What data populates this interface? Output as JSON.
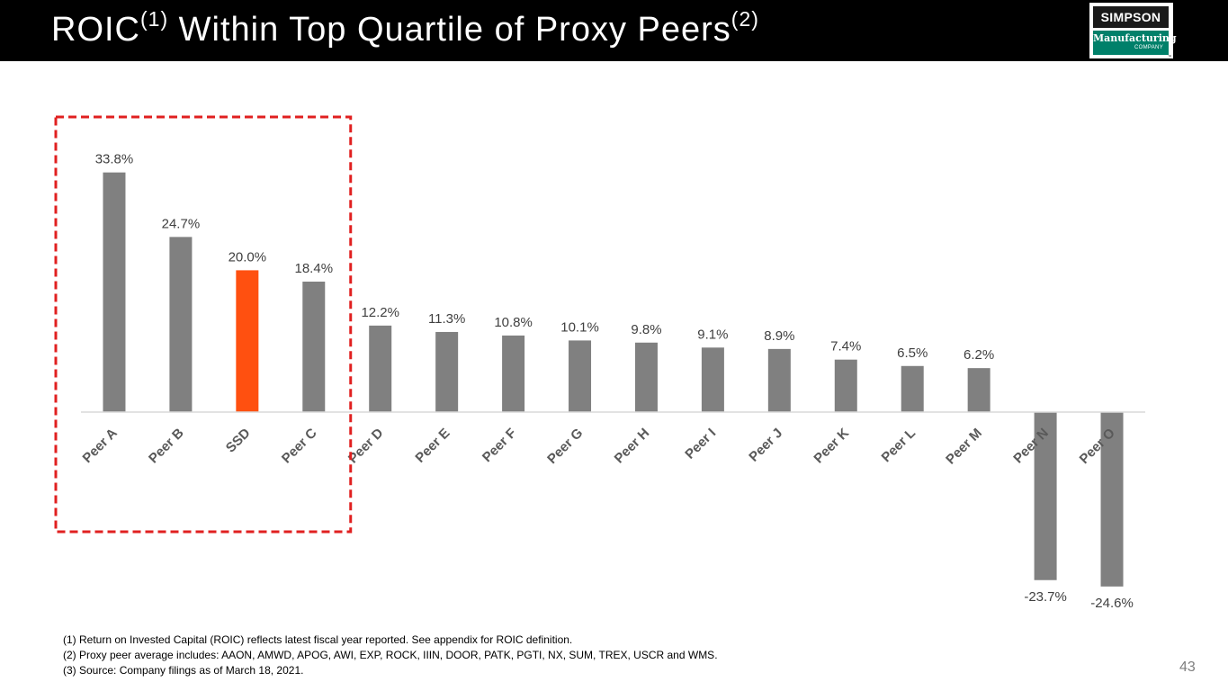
{
  "header": {
    "title_main": "ROIC",
    "title_sup1": "(1)",
    "title_rest": " Within Top Quartile of Proxy Peers",
    "title_sup2": "(2)"
  },
  "logo": {
    "line1": "SIMPSON",
    "line2": "Manufacturing",
    "line3": "COMPANY",
    "tm": "™"
  },
  "colors": {
    "bar_default": "#808080",
    "bar_highlight": "#ff5010",
    "highlight_box": "#e02020",
    "axis": "#d9d9d9"
  },
  "chart_data": {
    "type": "bar",
    "title": "",
    "xlabel": "",
    "ylabel": "",
    "categories": [
      "Peer A",
      "Peer B",
      "SSD",
      "Peer C",
      "Peer D",
      "Peer E",
      "Peer F",
      "Peer G",
      "Peer H",
      "Peer I",
      "Peer J",
      "Peer K",
      "Peer L",
      "Peer M",
      "Peer N",
      "Peer O"
    ],
    "values": [
      33.8,
      24.7,
      20.0,
      18.4,
      12.2,
      11.3,
      10.8,
      10.1,
      9.8,
      9.1,
      8.9,
      7.4,
      6.5,
      6.2,
      -23.7,
      -24.6
    ],
    "value_labels": [
      "33.8%",
      "24.7%",
      "20.0%",
      "18.4%",
      "12.2%",
      "11.3%",
      "10.8%",
      "10.1%",
      "9.8%",
      "9.1%",
      "8.9%",
      "7.4%",
      "6.5%",
      "6.2%",
      "-23.7%",
      "-24.6%"
    ],
    "highlight_category": "SSD",
    "highlight_box_categories": [
      "Peer A",
      "Peer B",
      "SSD",
      "Peer C"
    ],
    "ylim": [
      -26,
      36
    ],
    "grid": false,
    "legend": "none"
  },
  "footnotes": [
    "(1)  Return on Invested Capital (ROIC) reflects latest fiscal year reported. See appendix for ROIC definition.",
    "(2)  Proxy peer average includes: AAON, AMWD, APOG, AWI, EXP, ROCK, IIIN, DOOR, PATK, PGTI, NX, SUM, TREX, USCR and WMS.",
    "(3)  Source: Company filings as of March 18, 2021."
  ],
  "page_number": "43"
}
